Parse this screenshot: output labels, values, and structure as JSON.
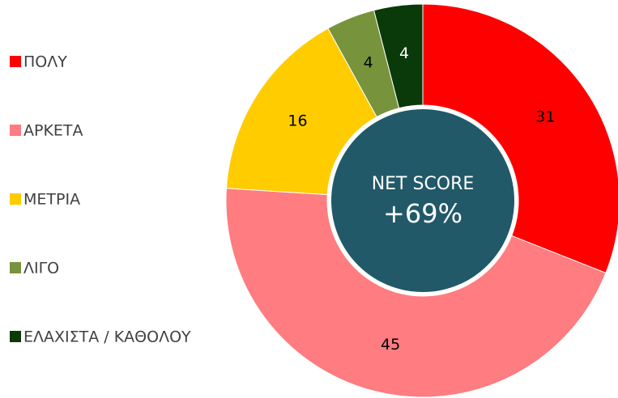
{
  "chart_data": {
    "type": "donut",
    "categories": [
      "ΠΟΛΥ",
      "ΑΡΚΕΤΑ",
      "ΜΕΤΡΙΑ",
      "ΛΙΓΟ",
      "ΕΛΑΧΙΣΤΑ / ΚΑΘΟΛΟΥ"
    ],
    "values": [
      31,
      45,
      16,
      4,
      4
    ],
    "colors": [
      "#ff0000",
      "#ff7c80",
      "#ffcc00",
      "#77933c",
      "#0a3a0a"
    ],
    "center_label": "NET SCORE",
    "center_value": "+69%",
    "center_color": "#215968",
    "legend": "left"
  }
}
